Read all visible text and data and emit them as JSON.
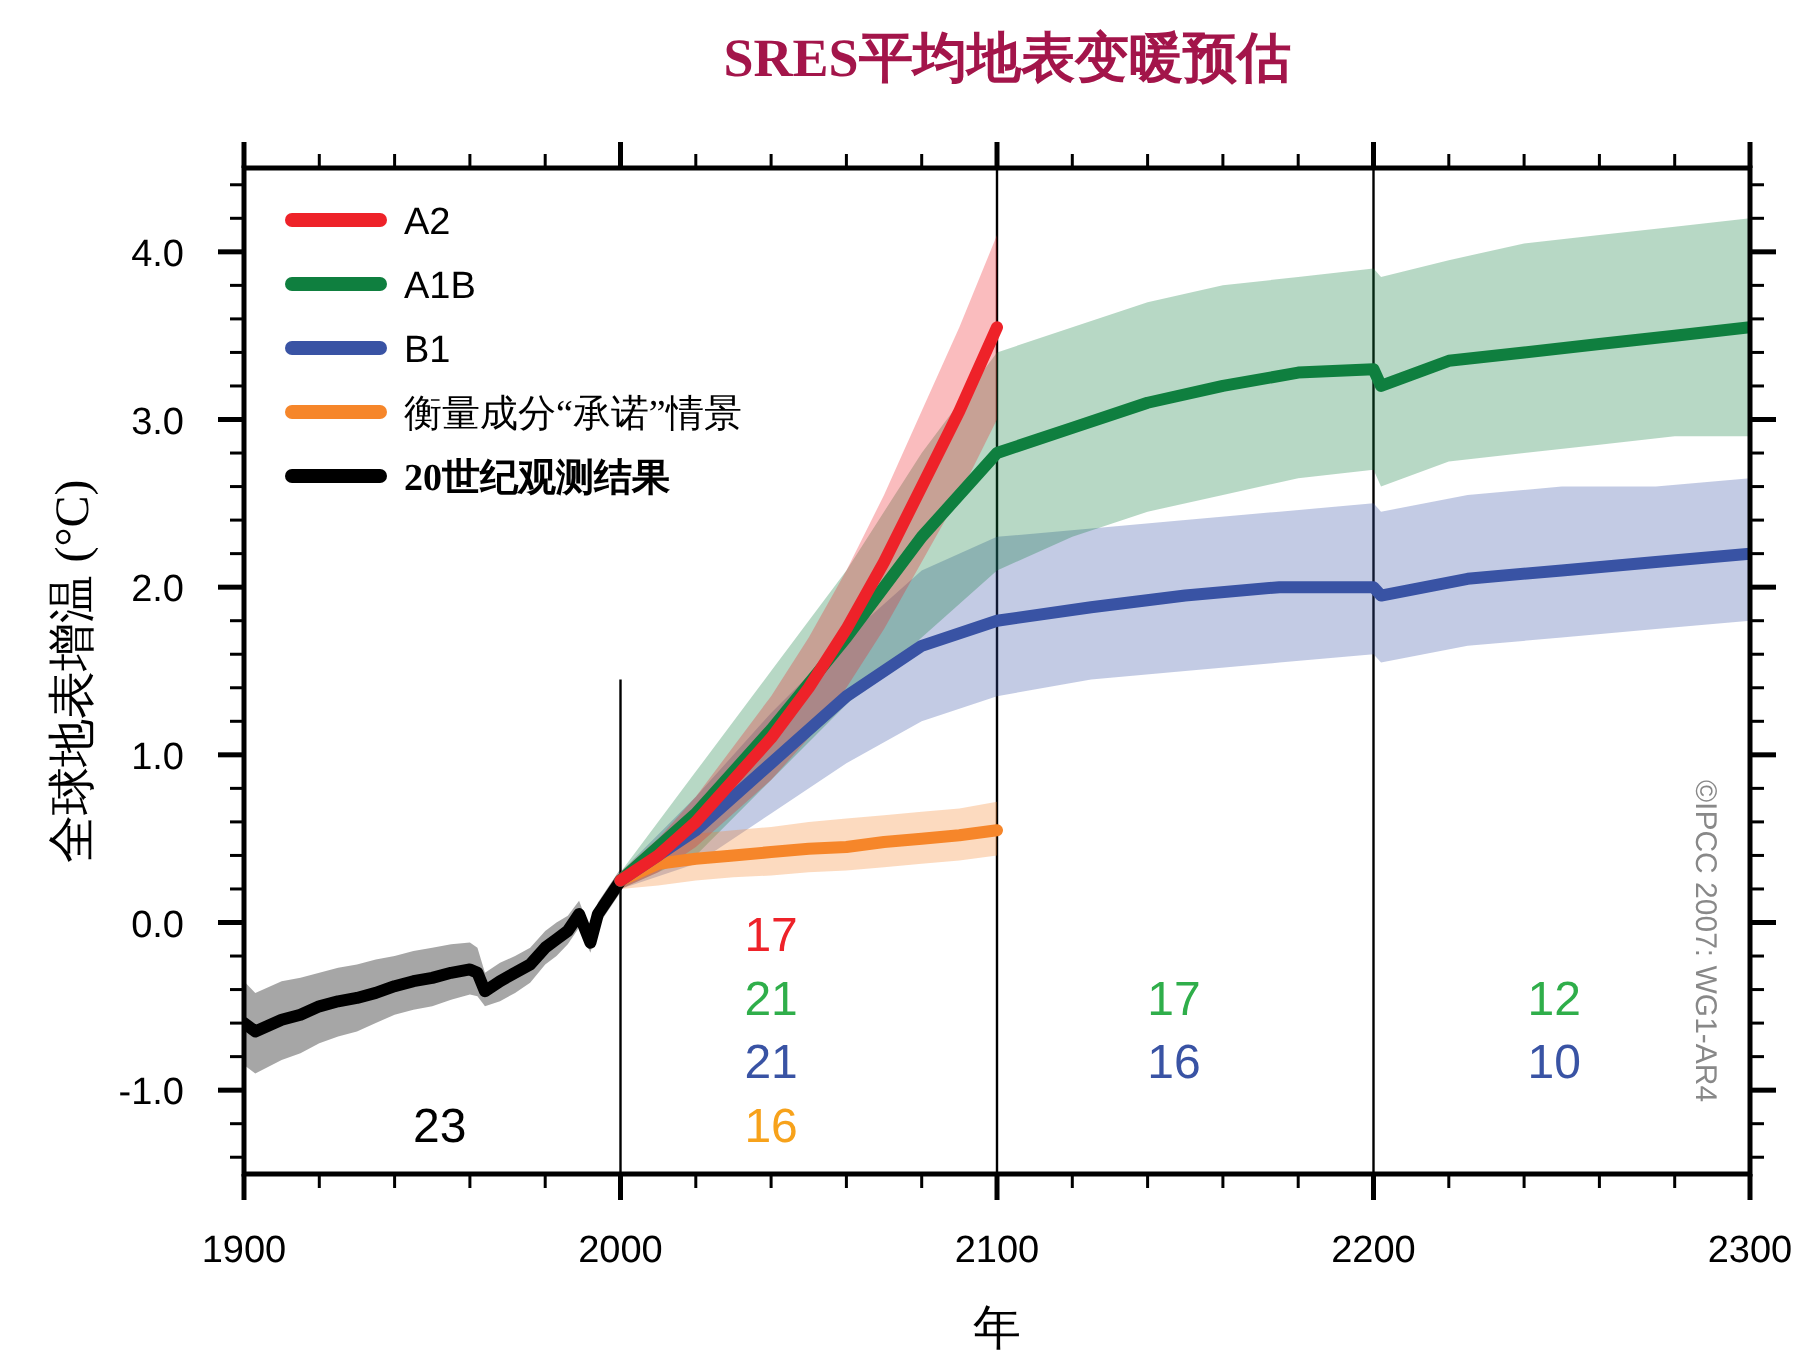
{
  "chart_data": {
    "type": "line",
    "title": "SRES平均地表变暖预估",
    "xlabel": "年",
    "ylabel": "全球地表增温 (°C)",
    "xlim": [
      1900,
      2300
    ],
    "xticks": [
      1900,
      2000,
      2100,
      2200,
      2300
    ],
    "ylim": [
      -1.5,
      4.5
    ],
    "yticks": [
      {
        "value": -1,
        "label": "-1.0"
      },
      {
        "value": 0,
        "label": "0.0"
      },
      {
        "value": 1,
        "label": "1.0"
      },
      {
        "value": 2,
        "label": "2.0"
      },
      {
        "value": 3,
        "label": "3.0"
      },
      {
        "value": 4,
        "label": "4.0"
      }
    ],
    "legend": "top left",
    "grid": false,
    "series": [
      {
        "name": "A2",
        "color": "#ee2229",
        "x": [
          2000,
          2010,
          2020,
          2030,
          2040,
          2050,
          2060,
          2070,
          2080,
          2090,
          2100
        ],
        "values": [
          0.25,
          0.4,
          0.6,
          0.85,
          1.1,
          1.4,
          1.75,
          2.15,
          2.6,
          3.05,
          3.55
        ],
        "lower": [
          0.2,
          0.3,
          0.45,
          0.65,
          0.85,
          1.1,
          1.4,
          1.75,
          2.15,
          2.55,
          3.0
        ],
        "upper": [
          0.3,
          0.5,
          0.75,
          1.05,
          1.35,
          1.7,
          2.1,
          2.55,
          3.05,
          3.55,
          4.1
        ]
      },
      {
        "name": "A1B",
        "color": "#0f7f3f",
        "x": [
          2000,
          2020,
          2040,
          2060,
          2080,
          2100,
          2120,
          2140,
          2160,
          2180,
          2200,
          2202,
          2220,
          2240,
          2260,
          2280,
          2300
        ],
        "values": [
          0.25,
          0.65,
          1.15,
          1.7,
          2.3,
          2.8,
          2.95,
          3.1,
          3.2,
          3.28,
          3.3,
          3.2,
          3.35,
          3.4,
          3.45,
          3.5,
          3.55
        ],
        "lower": [
          0.2,
          0.4,
          0.85,
          1.3,
          1.7,
          2.1,
          2.3,
          2.45,
          2.55,
          2.65,
          2.7,
          2.6,
          2.75,
          2.8,
          2.85,
          2.9,
          2.9
        ],
        "upper": [
          0.3,
          0.9,
          1.5,
          2.1,
          2.8,
          3.4,
          3.55,
          3.7,
          3.8,
          3.85,
          3.9,
          3.85,
          3.95,
          4.05,
          4.1,
          4.15,
          4.2
        ]
      },
      {
        "name": "B1",
        "color": "#3953a4",
        "x": [
          2000,
          2020,
          2040,
          2060,
          2080,
          2100,
          2125,
          2150,
          2175,
          2200,
          2202,
          2225,
          2250,
          2275,
          2300
        ],
        "values": [
          0.25,
          0.55,
          0.95,
          1.35,
          1.65,
          1.8,
          1.88,
          1.95,
          2.0,
          2.0,
          1.95,
          2.05,
          2.1,
          2.15,
          2.2
        ],
        "lower": [
          0.2,
          0.35,
          0.65,
          0.95,
          1.2,
          1.35,
          1.45,
          1.5,
          1.55,
          1.6,
          1.55,
          1.65,
          1.7,
          1.75,
          1.8
        ],
        "upper": [
          0.3,
          0.75,
          1.25,
          1.7,
          2.1,
          2.3,
          2.35,
          2.4,
          2.45,
          2.5,
          2.45,
          2.55,
          2.6,
          2.6,
          2.65
        ]
      },
      {
        "name": "衡量成分“承诺”情景",
        "color": "#f6862a",
        "x": [
          2000,
          2010,
          2020,
          2030,
          2040,
          2050,
          2060,
          2070,
          2080,
          2090,
          2100
        ],
        "values": [
          0.25,
          0.35,
          0.38,
          0.4,
          0.42,
          0.44,
          0.45,
          0.48,
          0.5,
          0.52,
          0.55
        ],
        "lower": [
          0.2,
          0.22,
          0.25,
          0.27,
          0.28,
          0.3,
          0.31,
          0.33,
          0.35,
          0.37,
          0.4
        ],
        "upper": [
          0.3,
          0.5,
          0.53,
          0.55,
          0.57,
          0.6,
          0.62,
          0.64,
          0.66,
          0.68,
          0.72
        ]
      },
      {
        "name": "20世纪观测结果",
        "color": "#000000",
        "x": [
          1900,
          1903,
          1910,
          1915,
          1920,
          1925,
          1930,
          1935,
          1940,
          1945,
          1950,
          1955,
          1960,
          1962,
          1964,
          1968,
          1972,
          1976,
          1980,
          1983,
          1986,
          1989,
          1992,
          1994,
          1997,
          2000
        ],
        "values": [
          -0.6,
          -0.65,
          -0.58,
          -0.55,
          -0.5,
          -0.47,
          -0.45,
          -0.42,
          -0.38,
          -0.35,
          -0.33,
          -0.3,
          -0.28,
          -0.3,
          -0.41,
          -0.35,
          -0.3,
          -0.25,
          -0.15,
          -0.1,
          -0.05,
          0.05,
          -0.12,
          0.05,
          0.15,
          0.25
        ],
        "lower": [
          -0.85,
          -0.9,
          -0.82,
          -0.78,
          -0.72,
          -0.68,
          -0.65,
          -0.6,
          -0.55,
          -0.52,
          -0.5,
          -0.46,
          -0.43,
          -0.44,
          -0.5,
          -0.47,
          -0.42,
          -0.36,
          -0.25,
          -0.2,
          -0.13,
          -0.03,
          -0.18,
          -0.02,
          0.08,
          0.18
        ],
        "upper": [
          -0.35,
          -0.42,
          -0.35,
          -0.33,
          -0.3,
          -0.27,
          -0.25,
          -0.22,
          -0.2,
          -0.17,
          -0.15,
          -0.13,
          -0.12,
          -0.15,
          -0.3,
          -0.24,
          -0.2,
          -0.15,
          -0.05,
          0.0,
          0.04,
          0.13,
          -0.05,
          0.12,
          0.22,
          0.32
        ]
      }
    ],
    "ref_lines": [
      {
        "axis": "x",
        "value": 2000
      },
      {
        "axis": "x",
        "value": 2100
      },
      {
        "axis": "x",
        "value": 2200
      }
    ],
    "annotations": [
      "17",
      "21",
      "21",
      "16",
      "23",
      "17",
      "16",
      "12",
      "10",
      "©IPCC 2007: WG1-AR4"
    ]
  }
}
